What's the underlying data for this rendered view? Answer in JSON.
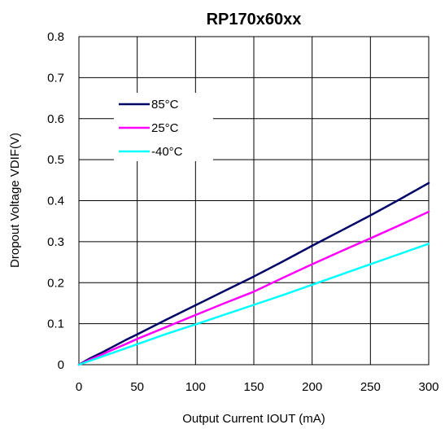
{
  "chart_data": {
    "type": "line",
    "title": "RP170x60xx",
    "xlabel": "Output Current IOUT (mA)",
    "ylabel": "Dropout Voltage VDIF(V)",
    "xlim": [
      0,
      300
    ],
    "ylim": [
      0,
      0.8
    ],
    "xticks": [
      0,
      50,
      100,
      150,
      200,
      250,
      300
    ],
    "yticks": [
      0,
      0.1,
      0.2,
      0.3,
      0.4,
      0.5,
      0.6,
      0.7,
      0.8
    ],
    "xtick_labels": [
      "0",
      "50",
      "100",
      "150",
      "200",
      "250",
      "300"
    ],
    "ytick_labels": [
      "0",
      "0.1",
      "0.2",
      "0.3",
      "0.4",
      "0.5",
      "0.6",
      "0.7",
      "0.8"
    ],
    "grid": true,
    "legend_position": "upper-left",
    "series": [
      {
        "name": "85°C",
        "color": "#000066",
        "x": [
          0,
          10,
          20,
          30,
          40,
          50,
          75,
          100,
          125,
          150,
          175,
          200,
          225,
          250,
          275,
          300
        ],
        "y": [
          0,
          0.016,
          0.03,
          0.045,
          0.06,
          0.074,
          0.11,
          0.145,
          0.18,
          0.215,
          0.252,
          0.29,
          0.327,
          0.364,
          0.403,
          0.443
        ]
      },
      {
        "name": "25°C",
        "color": "#ff00ff",
        "x": [
          0,
          10,
          20,
          30,
          40,
          50,
          75,
          100,
          125,
          150,
          175,
          200,
          225,
          250,
          275,
          300
        ],
        "y": [
          0,
          0.013,
          0.025,
          0.038,
          0.05,
          0.063,
          0.092,
          0.121,
          0.15,
          0.178,
          0.212,
          0.245,
          0.277,
          0.308,
          0.34,
          0.373
        ]
      },
      {
        "name": "-40°C",
        "color": "#00ffff",
        "x": [
          0,
          10,
          20,
          30,
          40,
          50,
          75,
          100,
          125,
          150,
          175,
          200,
          225,
          250,
          275,
          300
        ],
        "y": [
          0,
          0.01,
          0.02,
          0.03,
          0.04,
          0.05,
          0.075,
          0.098,
          0.122,
          0.146,
          0.17,
          0.195,
          0.22,
          0.245,
          0.27,
          0.295
        ]
      }
    ]
  }
}
